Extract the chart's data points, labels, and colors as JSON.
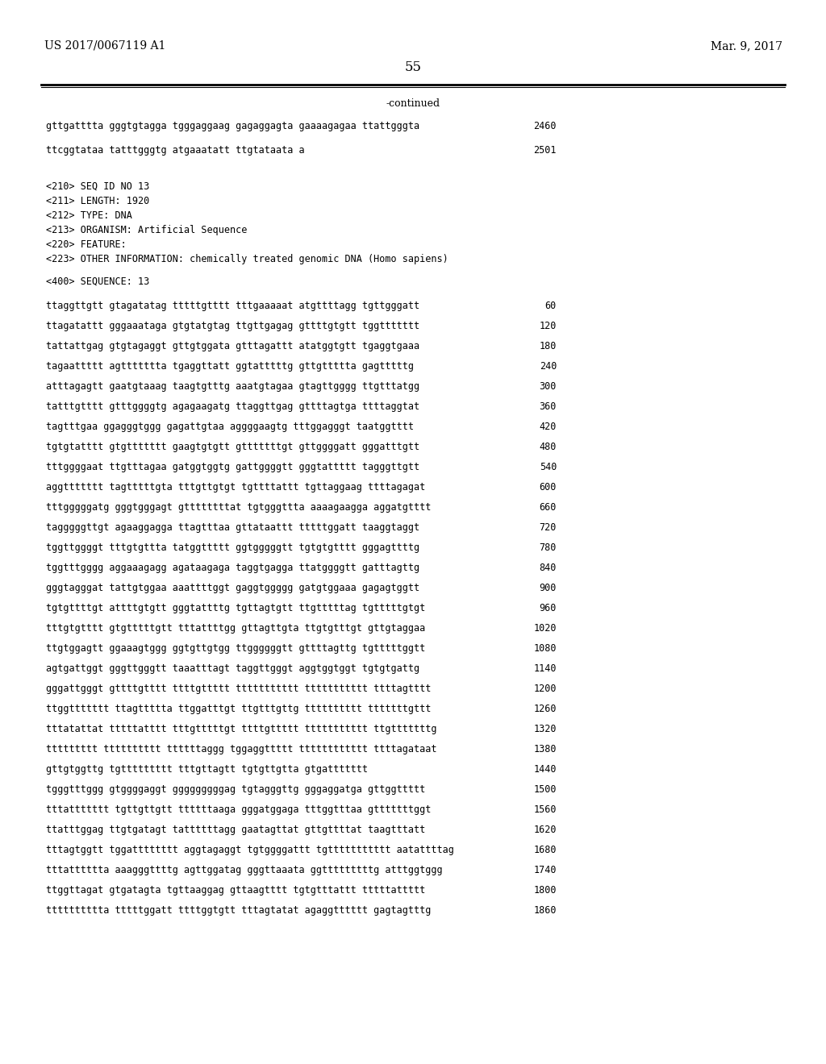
{
  "header_left": "US 2017/0067119 A1",
  "header_right": "Mar. 9, 2017",
  "page_number": "55",
  "continued_label": "-continued",
  "top_lines": [
    {
      "text": "gttgatttta gggtgtagga tgggaggaag gagaggagta gaaaagagaa ttattgggta",
      "num": "2460"
    },
    {
      "text": "ttcggtataa tatttgggtg atgaaatatt ttgtataata a",
      "num": "2501"
    }
  ],
  "metadata": [
    "<210> SEQ ID NO 13",
    "<211> LENGTH: 1920",
    "<212> TYPE: DNA",
    "<213> ORGANISM: Artificial Sequence",
    "<220> FEATURE:",
    "<223> OTHER INFORMATION: chemically treated genomic DNA (Homo sapiens)"
  ],
  "sequence_header": "<400> SEQUENCE: 13",
  "sequence_lines": [
    {
      "text": "ttaggttgtt gtagatatag tttttgtttt tttgaaaaat atgttttagg tgttgggatt",
      "num": "60"
    },
    {
      "text": "ttagatattt gggaaataga gtgtatgtag ttgttgagag gttttgtgtt tggttttttt",
      "num": "120"
    },
    {
      "text": "tattattgag gtgtagaggt gttgtggata gtttagattt atatggtgtt tgaggtgaaa",
      "num": "180"
    },
    {
      "text": "tagaattttt agttttttta tgaggttatt ggtatttttg gttgttttta gagtttttg",
      "num": "240"
    },
    {
      "text": "atttagagtt gaatgtaaag taagtgtttg aaatgtagaa gtagttgggg ttgtttatgg",
      "num": "300"
    },
    {
      "text": "tatttgtttt gtttggggtg agagaagatg ttaggttgag gttttagtga ttttaggtat",
      "num": "360"
    },
    {
      "text": "tagtttgaa ggagggtggg gagattgtaa aggggaagtg tttggagggt taatggtttt",
      "num": "420"
    },
    {
      "text": "tgtgtatttt gtgttttttt gaagtgtgtt gtttttttgt gttggggatt gggatttgtt",
      "num": "480"
    },
    {
      "text": "tttggggaat ttgtttagaa gatggtggtg gattggggtt gggtattttt tagggttgtt",
      "num": "540"
    },
    {
      "text": "aggttttttt tagtttttgta tttgttgtgt tgttttattt tgttaggaag ttttagagat",
      "num": "600"
    },
    {
      "text": "tttgggggatg gggtgggagt gttttttttat tgtgggttta aaaagaagga aggatgtttt",
      "num": "660"
    },
    {
      "text": "tagggggttgt agaaggagga ttagtttaa gttataattt tttttggatt taaggtaggt",
      "num": "720"
    },
    {
      "text": "tggttggggt tttgtgttta tatggttttt ggtgggggtt tgtgtgtttt gggagttttg",
      "num": "780"
    },
    {
      "text": "tggtttgggg aggaaagagg agataagaga taggtgagga ttatggggtt gatttagttg",
      "num": "840"
    },
    {
      "text": "gggtagggat tattgtggaa aaattttggt gaggtggggg gatgtggaaa gagagtggtt",
      "num": "900"
    },
    {
      "text": "tgtgttttgt attttgtgtt gggtattttg tgttagtgtt ttgtttttag tgtttttgtgt",
      "num": "960"
    },
    {
      "text": "tttgtgtttt gtgtttttgtt tttattttgg gttagttgta ttgtgtttgt gttgtaggaa",
      "num": "1020"
    },
    {
      "text": "ttgtggagtt ggaaagtggg ggtgttgtgg ttggggggtt gttttagttg tgtttttggtt",
      "num": "1080"
    },
    {
      "text": "agtgattggt gggttgggtt taaatttagt taggttgggt aggtggtggt tgtgtgattg",
      "num": "1140"
    },
    {
      "text": "gggattgggt gttttgtttt ttttgttttt ttttttttttt ttttttttttt ttttagtttt",
      "num": "1200"
    },
    {
      "text": "ttggttttttt ttagttttta ttggatttgt ttgtttgttg tttttttttt tttttttgttt",
      "num": "1260"
    },
    {
      "text": "tttatattat tttttatttt tttgtttttgt ttttgttttt ttttttttttt ttgtttttttg",
      "num": "1320"
    },
    {
      "text": "ttttttttt tttttttttt ttttttaggg tggaggttttt tttttttttttt ttttagataat",
      "num": "1380"
    },
    {
      "text": "gttgtggttg tgttttttttt tttgttagtt tgtgttgtta gtgattttttt",
      "num": "1440"
    },
    {
      "text": "tgggtttggg gtggggaggt gggggggggag tgtagggttg gggaggatga gttggttttt",
      "num": "1500"
    },
    {
      "text": "tttattttttt tgttgttgtt ttttttaaga gggatggaga tttggtttaa gtttttttggt",
      "num": "1560"
    },
    {
      "text": "ttatttggag ttgtgatagt tattttttagg gaatagttat gttgttttat taagtttatt",
      "num": "1620"
    },
    {
      "text": "tttagtggtt tggatttttttt aggtagaggt tgtggggattt tgttttttttttt aatattttag",
      "num": "1680"
    },
    {
      "text": "tttatttttta aaagggttttg agttggatag gggttaaata ggtttttttttg atttggtggg",
      "num": "1740"
    },
    {
      "text": "ttggttagat gtgatagta tgttaaggag gttaagtttt tgtgtttattt tttttattttt",
      "num": "1800"
    },
    {
      "text": "tttttttttta tttttggatt ttttggtgtt tttagtatat agaggtttttt gagtagtttg",
      "num": "1860"
    }
  ]
}
